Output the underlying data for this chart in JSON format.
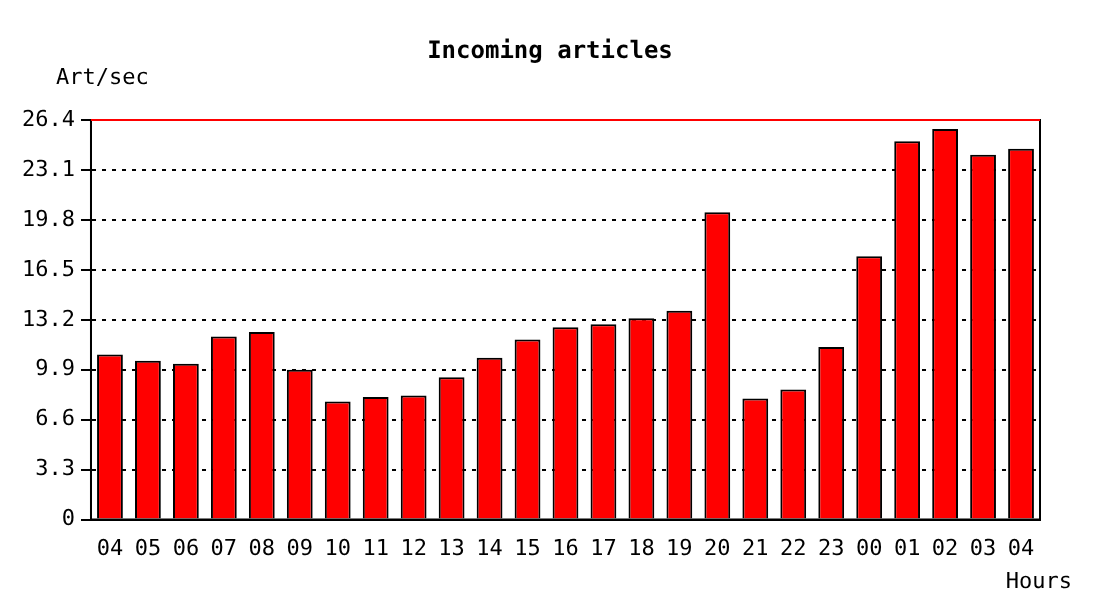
{
  "chart_data": {
    "type": "bar",
    "title": "Incoming articles",
    "ylabel": "Art/sec",
    "xlabel": "Hours",
    "categories": [
      "04",
      "05",
      "06",
      "07",
      "08",
      "09",
      "10",
      "11",
      "12",
      "13",
      "14",
      "15",
      "16",
      "17",
      "18",
      "19",
      "20",
      "21",
      "22",
      "23",
      "00",
      "01",
      "02",
      "03",
      "04"
    ],
    "values": [
      10.9,
      10.5,
      10.3,
      12.1,
      12.4,
      9.9,
      7.8,
      8.1,
      8.2,
      9.4,
      10.7,
      11.9,
      12.7,
      12.9,
      13.3,
      13.8,
      20.3,
      8.0,
      8.6,
      11.4,
      17.4,
      25.0,
      25.8,
      24.1,
      24.5
    ],
    "color": "#ff0000",
    "ylim": [
      0,
      26.4
    ],
    "yticks": [
      0,
      3.3,
      6.6,
      9.9,
      13.2,
      16.5,
      19.8,
      23.1,
      26.4
    ],
    "grid": "y",
    "line_style": "dotted",
    "ref_lines": [
      {
        "axis": "y",
        "value": 26.4,
        "color": "#ff0000"
      }
    ]
  }
}
